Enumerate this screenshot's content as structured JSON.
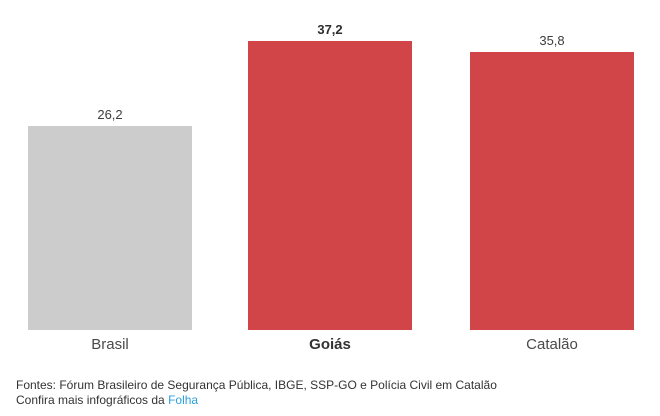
{
  "chart_data": {
    "type": "bar",
    "categories": [
      "Brasil",
      "Goiás",
      "Catalão"
    ],
    "values": [
      26.2,
      37.2,
      35.8
    ],
    "value_labels": [
      "26,2",
      "37,2",
      "35,8"
    ],
    "emphasized": [
      false,
      true,
      false
    ],
    "bar_colors": [
      "#cccccc",
      "#d14447",
      "#d14447"
    ],
    "title": "",
    "xlabel": "",
    "ylabel": "",
    "ylim": [
      0,
      37.2
    ],
    "grid": false,
    "legend": "none"
  },
  "footer": {
    "sources": "Fontes: Fórum Brasileiro de Segurança Pública, IBGE, SSP-GO e Polícia Civil em Catalão",
    "cta_prefix": "Confira mais infográficos da ",
    "cta_link_label": "Folha"
  },
  "colors": {
    "bar_gray": "#cccccc",
    "bar_red": "#d14447",
    "value_label": "#3d3d3d",
    "category_label": "#4a4a4a",
    "footer_text": "#333333",
    "link_blue": "#2b9fe0"
  }
}
